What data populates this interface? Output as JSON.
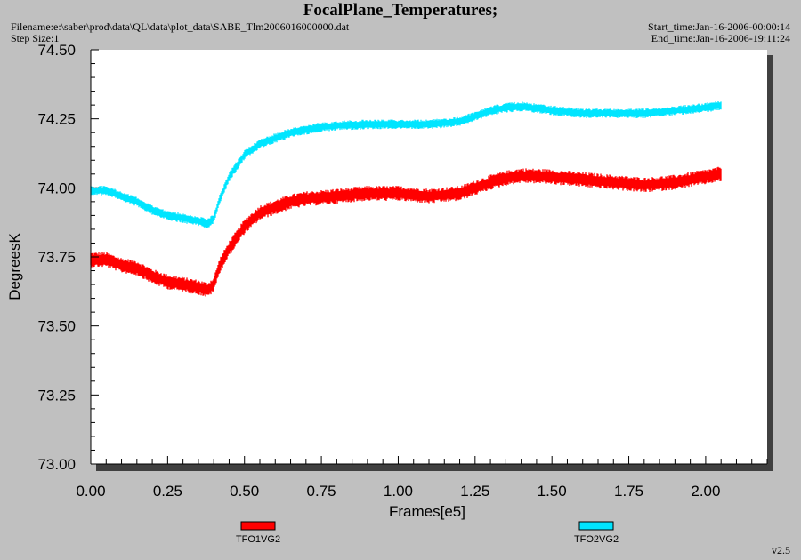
{
  "header": {
    "title": "FocalPlane_Temperatures;",
    "filename": "Filename:e:\\saber\\prod\\data\\QL\\data\\plot_data\\SABE_Tlm2006016000000.dat",
    "step_size": "Step Size:1",
    "start_time": "Start_time:Jan-16-2006-00:00:14",
    "end_time": "End_time:Jan-16-2006-19:11:24"
  },
  "footer": {
    "version": "v2.5"
  },
  "colors": {
    "background": "#c0c0c0",
    "plot_area": "#ffffff",
    "shadow": "#404040",
    "TFO1VG2": "#ff0000",
    "TFO2VG2": "#00e5ff"
  },
  "chart_data": {
    "type": "line",
    "title": "FocalPlane_Temperatures;",
    "xlabel": "Frames[e5]",
    "ylabel": "DegreesK",
    "xlim": [
      0,
      2.2
    ],
    "ylim": [
      73.0,
      74.5
    ],
    "xticks": [
      "0.00",
      "0.25",
      "0.50",
      "0.75",
      "1.00",
      "1.25",
      "1.50",
      "1.75",
      "2.00"
    ],
    "yticks": [
      "73.00",
      "73.25",
      "73.50",
      "73.75",
      "74.00",
      "74.25",
      "74.50"
    ],
    "grid": false,
    "legend": "bottom",
    "series": [
      {
        "name": "TFO1VG2",
        "color": "#ff0000",
        "noise": 0.025,
        "x": [
          0.0,
          0.05,
          0.1,
          0.15,
          0.2,
          0.25,
          0.3,
          0.35,
          0.38,
          0.4,
          0.42,
          0.45,
          0.5,
          0.55,
          0.6,
          0.65,
          0.7,
          0.75,
          0.8,
          0.9,
          1.0,
          1.1,
          1.2,
          1.25,
          1.3,
          1.35,
          1.4,
          1.5,
          1.6,
          1.7,
          1.8,
          1.9,
          2.0,
          2.05
        ],
        "y": [
          73.74,
          73.74,
          73.72,
          73.71,
          73.68,
          73.66,
          73.65,
          73.64,
          73.63,
          73.65,
          73.72,
          73.78,
          73.86,
          73.91,
          73.93,
          73.95,
          73.96,
          73.965,
          73.97,
          73.98,
          73.98,
          73.97,
          73.98,
          74.0,
          74.02,
          74.035,
          74.045,
          74.04,
          74.03,
          74.02,
          74.01,
          74.02,
          74.04,
          74.05
        ]
      },
      {
        "name": "TFO2VG2",
        "color": "#00e5ff",
        "noise": 0.016,
        "x": [
          0.0,
          0.05,
          0.1,
          0.15,
          0.2,
          0.25,
          0.3,
          0.35,
          0.38,
          0.4,
          0.42,
          0.45,
          0.5,
          0.55,
          0.6,
          0.65,
          0.7,
          0.75,
          0.8,
          0.9,
          1.0,
          1.1,
          1.2,
          1.25,
          1.3,
          1.35,
          1.4,
          1.5,
          1.6,
          1.7,
          1.8,
          1.9,
          2.0,
          2.05
        ],
        "y": [
          73.99,
          73.99,
          73.97,
          73.95,
          73.92,
          73.9,
          73.89,
          73.88,
          73.87,
          73.89,
          73.96,
          74.04,
          74.12,
          74.16,
          74.18,
          74.2,
          74.21,
          74.22,
          74.225,
          74.23,
          74.23,
          74.23,
          74.24,
          74.26,
          74.28,
          74.29,
          74.295,
          74.28,
          74.27,
          74.27,
          74.27,
          74.28,
          74.29,
          74.3
        ]
      }
    ]
  }
}
